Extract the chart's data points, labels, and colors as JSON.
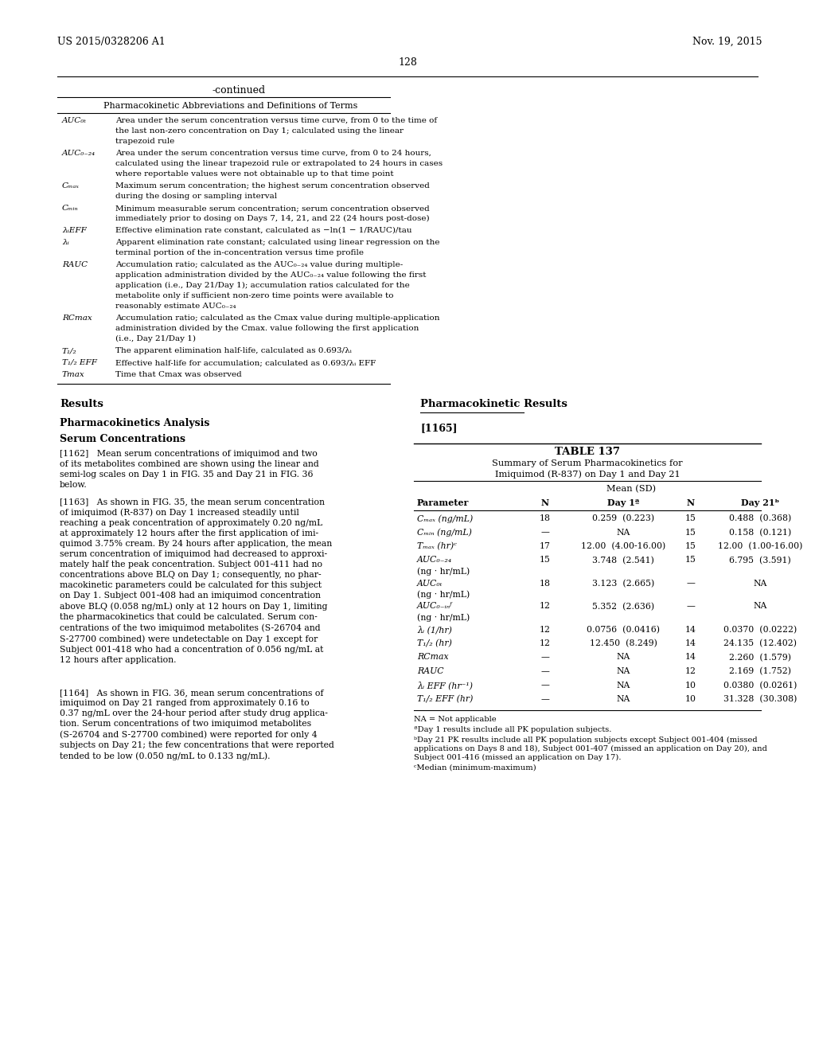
{
  "page_num": "128",
  "left_header": "US 2015/0328206 A1",
  "right_header": "Nov. 19, 2015",
  "continued_label": "-continued",
  "table_title_left": "Pharmacokinetic Abbreviations and Definitions of Terms",
  "abbrev_entries": [
    {
      "term": "AUC₀ₜ",
      "lines": [
        "Area under the serum concentration versus time curve, from 0 to the time of",
        "the last non-zero concentration on Day 1; calculated using the linear",
        "trapezoid rule"
      ]
    },
    {
      "term": "AUC₀₋₂₄",
      "lines": [
        "Area under the serum concentration versus time curve, from 0 to 24 hours,",
        "calculated using the linear trapezoid rule or extrapolated to 24 hours in cases",
        "where reportable values were not obtainable up to that time point"
      ]
    },
    {
      "term": "Cₘₐₓ",
      "lines": [
        "Maximum serum concentration; the highest serum concentration observed",
        "during the dosing or sampling interval"
      ]
    },
    {
      "term": "Cₘᵢₙ",
      "lines": [
        "Minimum measurable serum concentration; serum concentration observed",
        "immediately prior to dosing on Days 7, 14, 21, and 22 (24 hours post-dose)"
      ]
    },
    {
      "term": "λᵢEFF",
      "lines": [
        "Effective elimination rate constant, calculated as −ln(1 − 1/RAUC)/tau"
      ]
    },
    {
      "term": "λᵢ",
      "lines": [
        "Apparent elimination rate constant; calculated using linear regression on the",
        "terminal portion of the in-concentration versus time profile"
      ]
    },
    {
      "term": "RAUC",
      "lines": [
        "Accumulation ratio; calculated as the AUC₀₋₂₄ value during multiple-",
        "application administration divided by the AUC₀₋₂₄ value following the first",
        "application (i.e., Day 21/Day 1); accumulation ratios calculated for the",
        "metabolite only if sufficient non-zero time points were available to",
        "reasonably estimate AUC₀₋₂₄"
      ]
    },
    {
      "term": "RCmax",
      "lines": [
        "Accumulation ratio; calculated as the Cmax value during multiple-application",
        "administration divided by the Cmax. value following the first application",
        "(i.e., Day 21/Day 1)"
      ]
    },
    {
      "term": "T₁/₂",
      "lines": [
        "The apparent elimination half-life, calculated as 0.693/λᵢ"
      ]
    },
    {
      "term": "T₁/₂ EFF",
      "lines": [
        "Effective half-life for accumulation; calculated as 0.693/λᵢ EFF"
      ]
    },
    {
      "term": "Tmax",
      "lines": [
        "Time that Cmax was observed"
      ]
    }
  ],
  "p1162": "[1162]   Mean serum concentrations of imiquimod and two\nof its metabolites combined are shown using the linear and\nsemi-log scales on Day 1 in FIG. 35 and Day 21 in FIG. 36\nbelow.",
  "p1163": "[1163]   As shown in FIG. 35, the mean serum concentration\nof imiquimod (R-837) on Day 1 increased steadily until\nreaching a peak concentration of approximately 0.20 ng/mL\nat approximately 12 hours after the first application of imi-\nquimod 3.75% cream. By 24 hours after application, the mean\nserum concentration of imiquimod had decreased to approxi-\nmately half the peak concentration. Subject 001-411 had no\nconcentrations above BLQ on Day 1; consequently, no phar-\nmacokinetic parameters could be calculated for this subject\non Day 1. Subject 001-408 had an imiquimod concentration\nabove BLQ (0.058 ng/mL) only at 12 hours on Day 1, limiting\nthe pharmacokinetics that could be calculated. Serum con-\ncentrations of the two imiquimod metabolites (S-26704 and\nS-27700 combined) were undetectable on Day 1 except for\nSubject 001-418 who had a concentration of 0.056 ng/mL at\n12 hours after application.",
  "p1164": "[1164]   As shown in FIG. 36, mean serum concentrations of\nimiquimod on Day 21 ranged from approximately 0.16 to\n0.37 ng/mL over the 24-hour period after study drug applica-\ntion. Serum concentrations of two imiquimod metabolites\n(S-26704 and S-27700 combined) were reported for only 4\nsubjects on Day 21; the few concentrations that were reported\ntended to be low (0.050 ng/mL to 0.133 ng/mL).",
  "table137_title": "TABLE 137",
  "table137_sub1": "Summary of Serum Pharmacokinetics for",
  "table137_sub2": "Imiquimod (R-837) on Day 1 and Day 21",
  "table137_mean_sd": "Mean (SD)",
  "table137_col1": "Parameter",
  "table137_col2": "N",
  "table137_col3": "Day 1ª",
  "table137_col4": "N",
  "table137_col5": "Day 21ᵇ",
  "table137_rows": [
    {
      "param": "Cₘₐₓ (ng/mL)",
      "n1": "18",
      "d1": "0.259  (0.223)",
      "n2": "15",
      "d21": "0.488  (0.368)",
      "nlines": 1
    },
    {
      "param": "Cₘᵢₙ (ng/mL)",
      "n1": "—",
      "d1": "NA",
      "n2": "15",
      "d21": "0.158  (0.121)",
      "nlines": 1
    },
    {
      "param": "Tₘₐₓ (hr)ᶜ",
      "n1": "17",
      "d1": "12.00  (4.00-16.00)",
      "n2": "15",
      "d21": "12.00  (1.00-16.00)",
      "nlines": 1
    },
    {
      "param": "AUC₀₋₂₄",
      "param2": "(ng · hr/mL)",
      "n1": "15",
      "d1": "3.748  (2.541)",
      "n2": "15",
      "d21": "6.795  (3.591)",
      "nlines": 2
    },
    {
      "param": "AUC₀ₜ",
      "param2": "(ng · hr/mL)",
      "n1": "18",
      "d1": "3.123  (2.665)",
      "n2": "—",
      "d21": "NA",
      "nlines": 2
    },
    {
      "param": "AUC₀₋ᵢₙᶠ",
      "param2": "(ng · hr/mL)",
      "n1": "12",
      "d1": "5.352  (2.636)",
      "n2": "—",
      "d21": "NA",
      "nlines": 2
    },
    {
      "param": "λᵢ (1/hr)",
      "n1": "12",
      "d1": "0.0756  (0.0416)",
      "n2": "14",
      "d21": "0.0370  (0.0222)",
      "nlines": 1
    },
    {
      "param": "T₁/₂ (hr)",
      "n1": "12",
      "d1": "12.450  (8.249)",
      "n2": "14",
      "d21": "24.135  (12.402)",
      "nlines": 1
    },
    {
      "param": "RCmax",
      "n1": "—",
      "d1": "NA",
      "n2": "14",
      "d21": "2.260  (1.579)",
      "nlines": 1
    },
    {
      "param": "RAUC",
      "n1": "—",
      "d1": "NA",
      "n2": "12",
      "d21": "2.169  (1.752)",
      "nlines": 1
    },
    {
      "param": "λᵢ EFF (hr⁻¹)",
      "n1": "—",
      "d1": "NA",
      "n2": "10",
      "d21": "0.0380  (0.0261)",
      "nlines": 1
    },
    {
      "param": "T₁/₂ EFF (hr)",
      "n1": "—",
      "d1": "NA",
      "n2": "10",
      "d21": "31.328  (30.308)",
      "nlines": 1
    }
  ],
  "table137_fn1": "NA = Not applicable",
  "table137_fn2": "ªDay 1 results include all PK population subjects.",
  "table137_fn3": "ᵇDay 21 PK results include all PK population subjects except Subject 001-404 (missed\napplications on Days 8 and 18), Subject 001-407 (missed an application on Day 20), and\nSubject 001-416 (missed an application on Day 17).",
  "table137_fn4": "ᶜMedian (minimum-maximum)"
}
